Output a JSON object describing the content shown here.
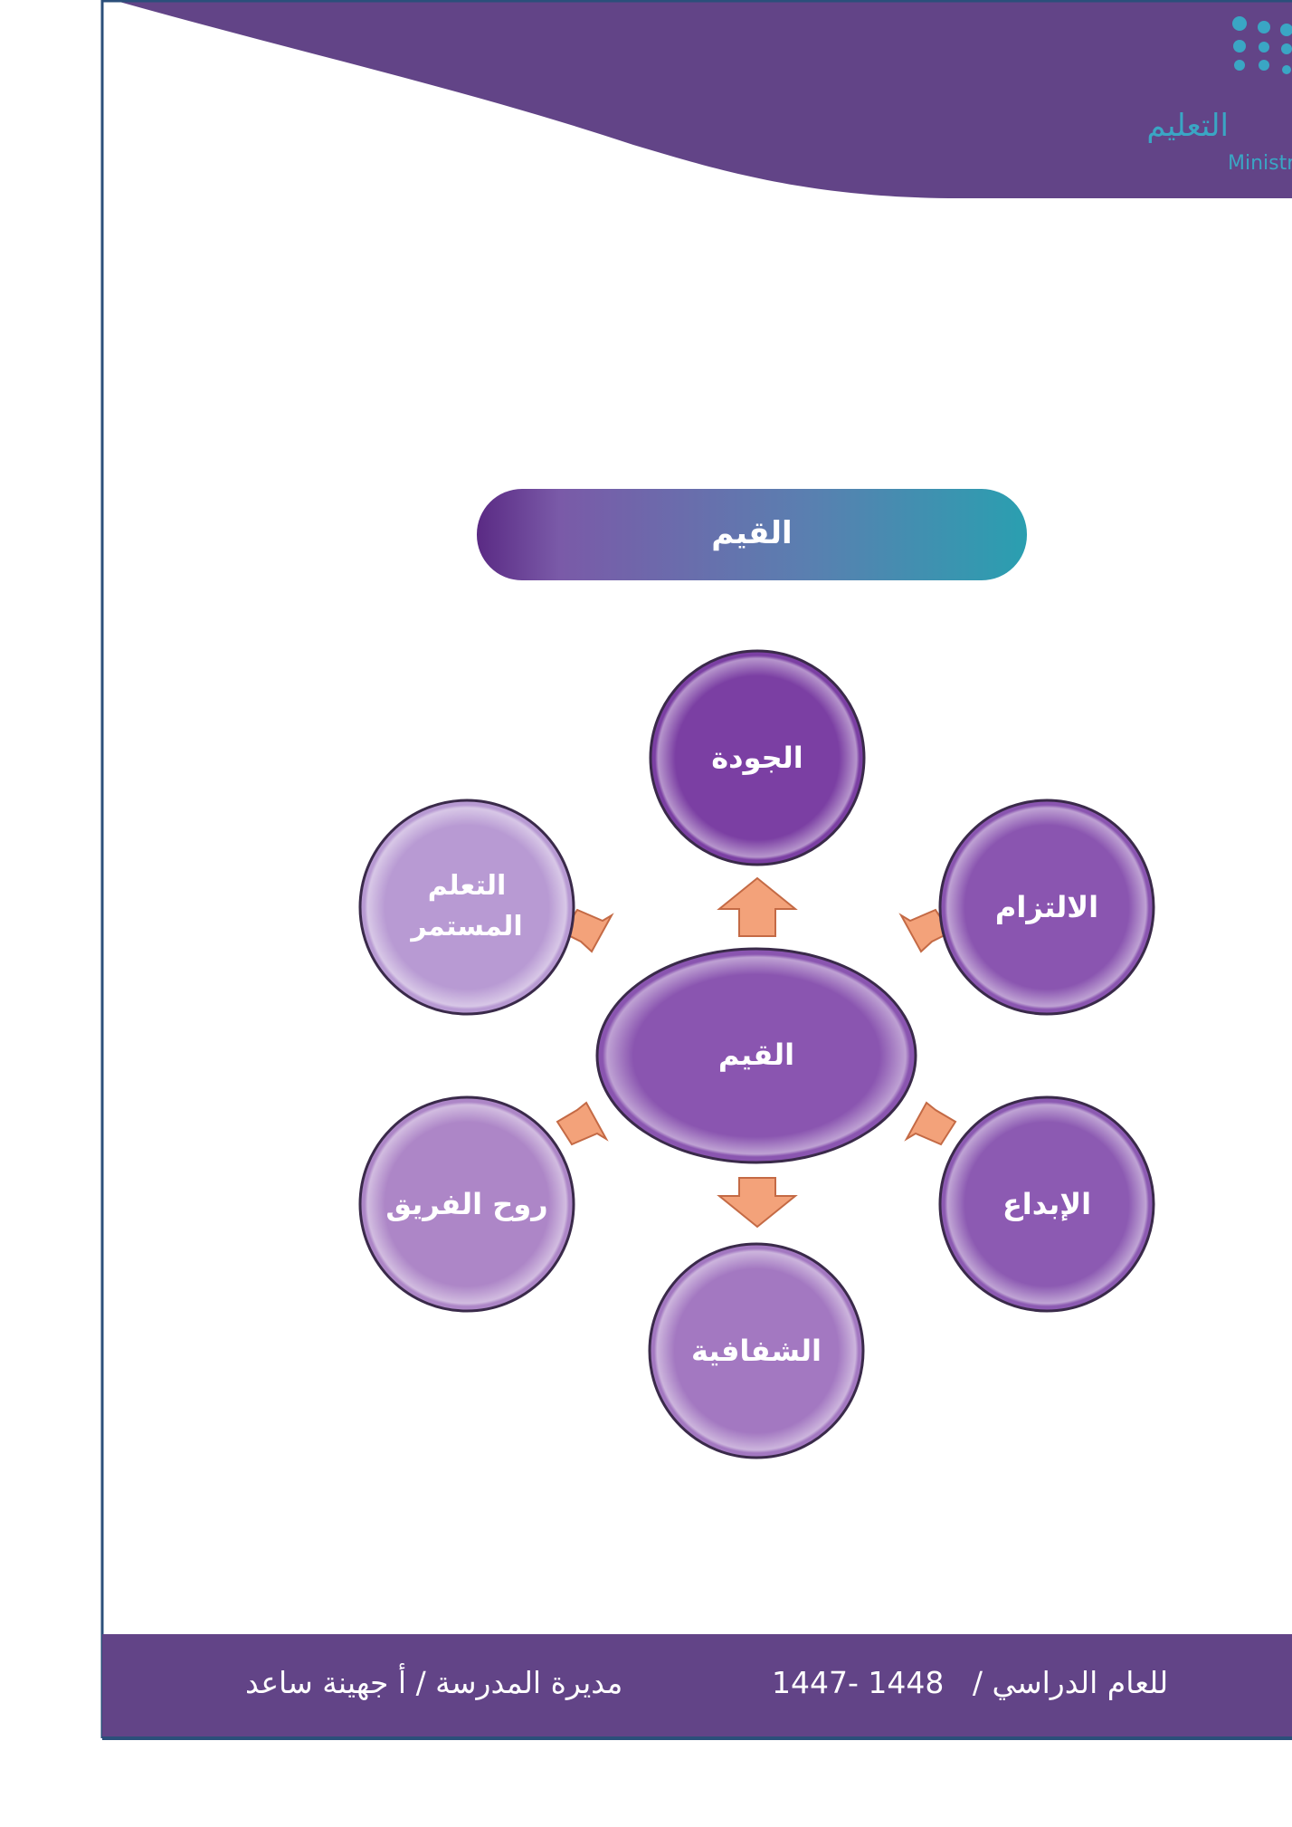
{
  "header": {
    "logo_text_ar": "التعليم",
    "logo_text_en": "Ministry of Education",
    "colors": {
      "band": "#624487",
      "logo": "#3aa6c4"
    }
  },
  "title_pill": {
    "label": "القيم"
  },
  "diagram": {
    "center": {
      "label": "القيم"
    },
    "nodes": [
      {
        "label": "الجودة",
        "color": "#7b3fa3"
      },
      {
        "label": "الالتزام",
        "color": "#8a55b0"
      },
      {
        "label": "الإبداع",
        "color": "#8c5ab2"
      },
      {
        "label": "الشفافية",
        "color": "#a378c1"
      },
      {
        "label": "روح الفريق",
        "color": "#ad86c7"
      },
      {
        "label_line1": "التعلم",
        "label_line2": "المستمر",
        "color": "#b89ad3"
      }
    ]
  },
  "footer": {
    "year_label": "للعام الدراسي /",
    "year": "1447- 1448",
    "principal": "مديرة المدرسة / أ جهينة ساعد"
  }
}
